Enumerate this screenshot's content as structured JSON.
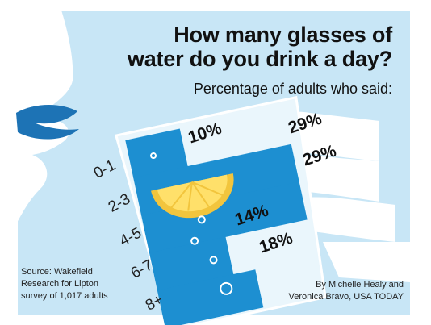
{
  "chart_data": {
    "type": "bar",
    "title": "How many glasses of",
    "title_line2": "water do you drink a day?",
    "subtitle": "Percentage of adults who said:",
    "categories": [
      "0-1",
      "2-3",
      "4-5",
      "6-7",
      "8+"
    ],
    "values": [
      10,
      29,
      29,
      14,
      18
    ],
    "value_labels": [
      "10%",
      "29%",
      "29%",
      "14%",
      "18%"
    ],
    "unit": "%",
    "xlabel": "",
    "ylabel": "",
    "colors": {
      "water": "#1d8fd1",
      "water_light": "#47b4e8",
      "background": "#c8e6f6"
    }
  },
  "footer": {
    "source_lines": [
      "Source:  Wakefield",
      "Research for Lipton",
      "survey  of 1,017 adults"
    ],
    "credit_lines": [
      "By Michelle Healy and",
      "Veronica Bravo, USA TODAY"
    ]
  }
}
